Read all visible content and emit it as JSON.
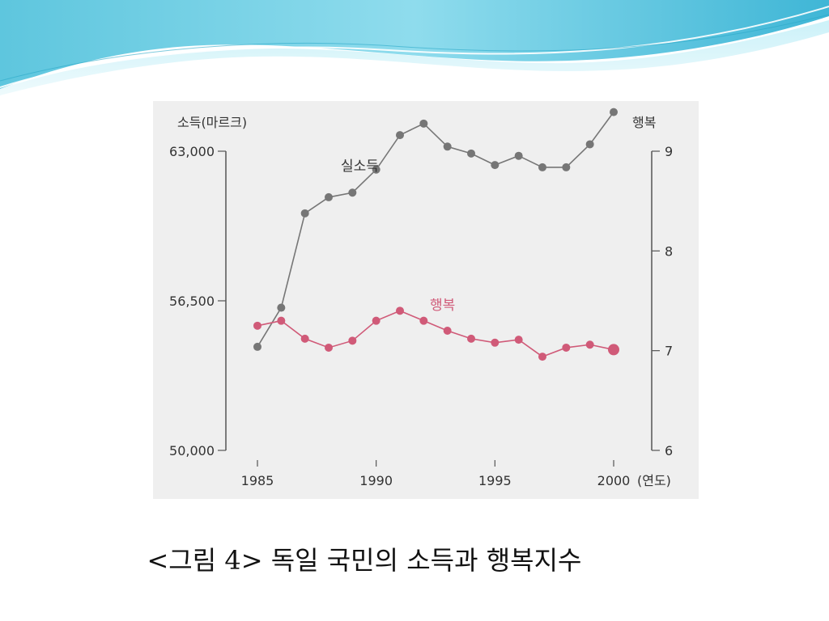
{
  "colors": {
    "income_series": "#767676",
    "happiness_series": "#d05a78",
    "axis": "#555555",
    "frame_bg": "#efefef"
  },
  "caption": "<그림 4> 독일 국민의 소득과 행복지수",
  "chart_data": {
    "type": "line",
    "xlabel": "(연도)",
    "y_left_label": "소득(마르크)",
    "y_right_label": "행복",
    "x_ticks": [
      1985,
      1990,
      1995,
      2000
    ],
    "x_range": [
      1985,
      2000
    ],
    "y_left_ticks": [
      "50,000",
      "56,500",
      "63,000"
    ],
    "y_left_tick_values": [
      50000,
      56500,
      63000
    ],
    "y_left_range": [
      50000,
      63000
    ],
    "y_right_ticks": [
      6,
      7,
      8,
      9
    ],
    "y_right_range": [
      6,
      9
    ],
    "grid": false,
    "series": [
      {
        "name": "실소득",
        "axis": "left",
        "x": [
          1985,
          1986,
          1987,
          1988,
          1989,
          1990,
          1991,
          1992,
          1993,
          1994,
          1995,
          1996,
          1997,
          1998,
          1999,
          2000
        ],
        "values": [
          54500,
          56200,
          60300,
          61000,
          61200,
          62200,
          63700,
          64200,
          63200,
          62900,
          62400,
          62800,
          62300,
          62300,
          63300,
          64700
        ]
      },
      {
        "name": "행복",
        "axis": "right",
        "x": [
          1985,
          1986,
          1987,
          1988,
          1989,
          1990,
          1991,
          1992,
          1993,
          1994,
          1995,
          1996,
          1997,
          1998,
          1999,
          2000
        ],
        "values": [
          7.25,
          7.3,
          7.12,
          7.03,
          7.1,
          7.3,
          7.4,
          7.3,
          7.2,
          7.12,
          7.08,
          7.11,
          6.94,
          7.03,
          7.06,
          7.01
        ]
      }
    ]
  }
}
